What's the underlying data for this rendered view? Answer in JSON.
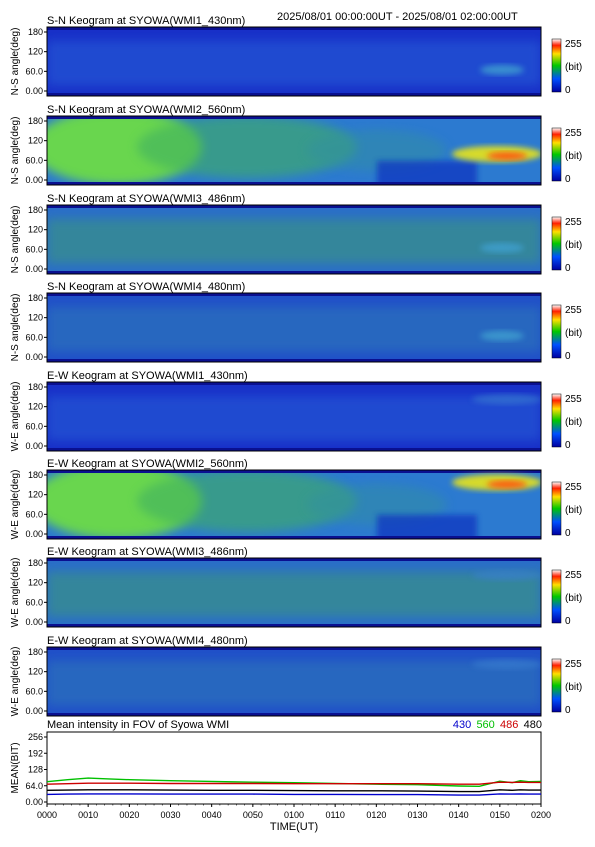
{
  "header": {
    "date_range": "2025/08/01 00:00:00UT - 2025/08/01 02:00:00UT"
  },
  "colorbar": {
    "max_label": "255",
    "unit_label": "(bit)",
    "min_label": "0"
  },
  "chart_data": [
    {
      "type": "heatmap",
      "title": "S-N Keogram at SYOWA(WMI1_430nm)",
      "ylabel": "N-S angle(deg)",
      "yticks": [
        "180",
        "120",
        "60.0",
        "0.00"
      ],
      "brightness": "low",
      "aurora": "weak"
    },
    {
      "type": "heatmap",
      "title": "S-N Keogram at SYOWA(WMI2_560nm)",
      "ylabel": "N-S angle(deg)",
      "yticks": [
        "180",
        "120",
        "60.0",
        "0.00"
      ],
      "brightness": "high",
      "aurora": "strong"
    },
    {
      "type": "heatmap",
      "title": "S-N Keogram at SYOWA(WMI3_486nm)",
      "ylabel": "N-S angle(deg)",
      "yticks": [
        "180",
        "120",
        "60.0",
        "0.00"
      ],
      "brightness": "medium",
      "aurora": "weak"
    },
    {
      "type": "heatmap",
      "title": "S-N Keogram at SYOWA(WMI4_480nm)",
      "ylabel": "N-S angle(deg)",
      "yticks": [
        "180",
        "120",
        "60.0",
        "0.00"
      ],
      "brightness": "low-medium",
      "aurora": "weak"
    },
    {
      "type": "heatmap",
      "title": "E-W Keogram at SYOWA(WMI1_430nm)",
      "ylabel": "W-E angle(deg)",
      "yticks": [
        "180",
        "120",
        "60.0",
        "0.00"
      ],
      "brightness": "low",
      "aurora": "faint"
    },
    {
      "type": "heatmap",
      "title": "E-W Keogram at SYOWA(WMI2_560nm)",
      "ylabel": "W-E angle(deg)",
      "yticks": [
        "180",
        "120",
        "60.0",
        "0.00"
      ],
      "brightness": "high",
      "aurora": "strong"
    },
    {
      "type": "heatmap",
      "title": "E-W Keogram at SYOWA(WMI3_486nm)",
      "ylabel": "W-E angle(deg)",
      "yticks": [
        "180",
        "120",
        "60.0",
        "0.00"
      ],
      "brightness": "medium",
      "aurora": "faint"
    },
    {
      "type": "heatmap",
      "title": "E-W Keogram at SYOWA(WMI4_480nm)",
      "ylabel": "W-E angle(deg)",
      "yticks": [
        "180",
        "120",
        "60.0",
        "0.00"
      ],
      "brightness": "low-medium",
      "aurora": "faint"
    },
    {
      "type": "line",
      "title": "Mean intensity in FOV of Syowa WMI",
      "xlabel": "TIME(UT)",
      "ylabel": "MEAN(BIT)",
      "xlim": [
        0,
        120
      ],
      "ylim": [
        0,
        256
      ],
      "yticks": [
        "256",
        "192",
        "128",
        "64.0",
        "0.00"
      ],
      "xticklabels": [
        "0000",
        "0010",
        "0020",
        "0030",
        "0040",
        "0050",
        "0100",
        "0110",
        "0120",
        "0130",
        "0140",
        "0150",
        "0200"
      ],
      "x": [
        0,
        5,
        10,
        15,
        20,
        30,
        40,
        50,
        60,
        70,
        80,
        90,
        100,
        105,
        110,
        113,
        115,
        117,
        120
      ],
      "series": [
        {
          "name": "430",
          "color": "#0000cc",
          "values": [
            30,
            31,
            32,
            32,
            32,
            31,
            31,
            31,
            30,
            30,
            29,
            29,
            27,
            27,
            32,
            31,
            32,
            31,
            31
          ]
        },
        {
          "name": "560",
          "color": "#00c000",
          "values": [
            80,
            88,
            94,
            91,
            88,
            84,
            81,
            78,
            76,
            73,
            70,
            68,
            63,
            62,
            82,
            76,
            84,
            80,
            81
          ]
        },
        {
          "name": "486",
          "color": "#cc0000",
          "values": [
            70,
            72,
            74,
            74,
            74,
            73,
            73,
            73,
            72,
            72,
            72,
            72,
            70,
            70,
            78,
            77,
            78,
            77,
            77
          ]
        },
        {
          "name": "480",
          "color": "#000000",
          "values": [
            46,
            47,
            48,
            48,
            48,
            47,
            46,
            46,
            45,
            44,
            44,
            43,
            41,
            41,
            48,
            46,
            48,
            47,
            47
          ]
        }
      ]
    }
  ]
}
